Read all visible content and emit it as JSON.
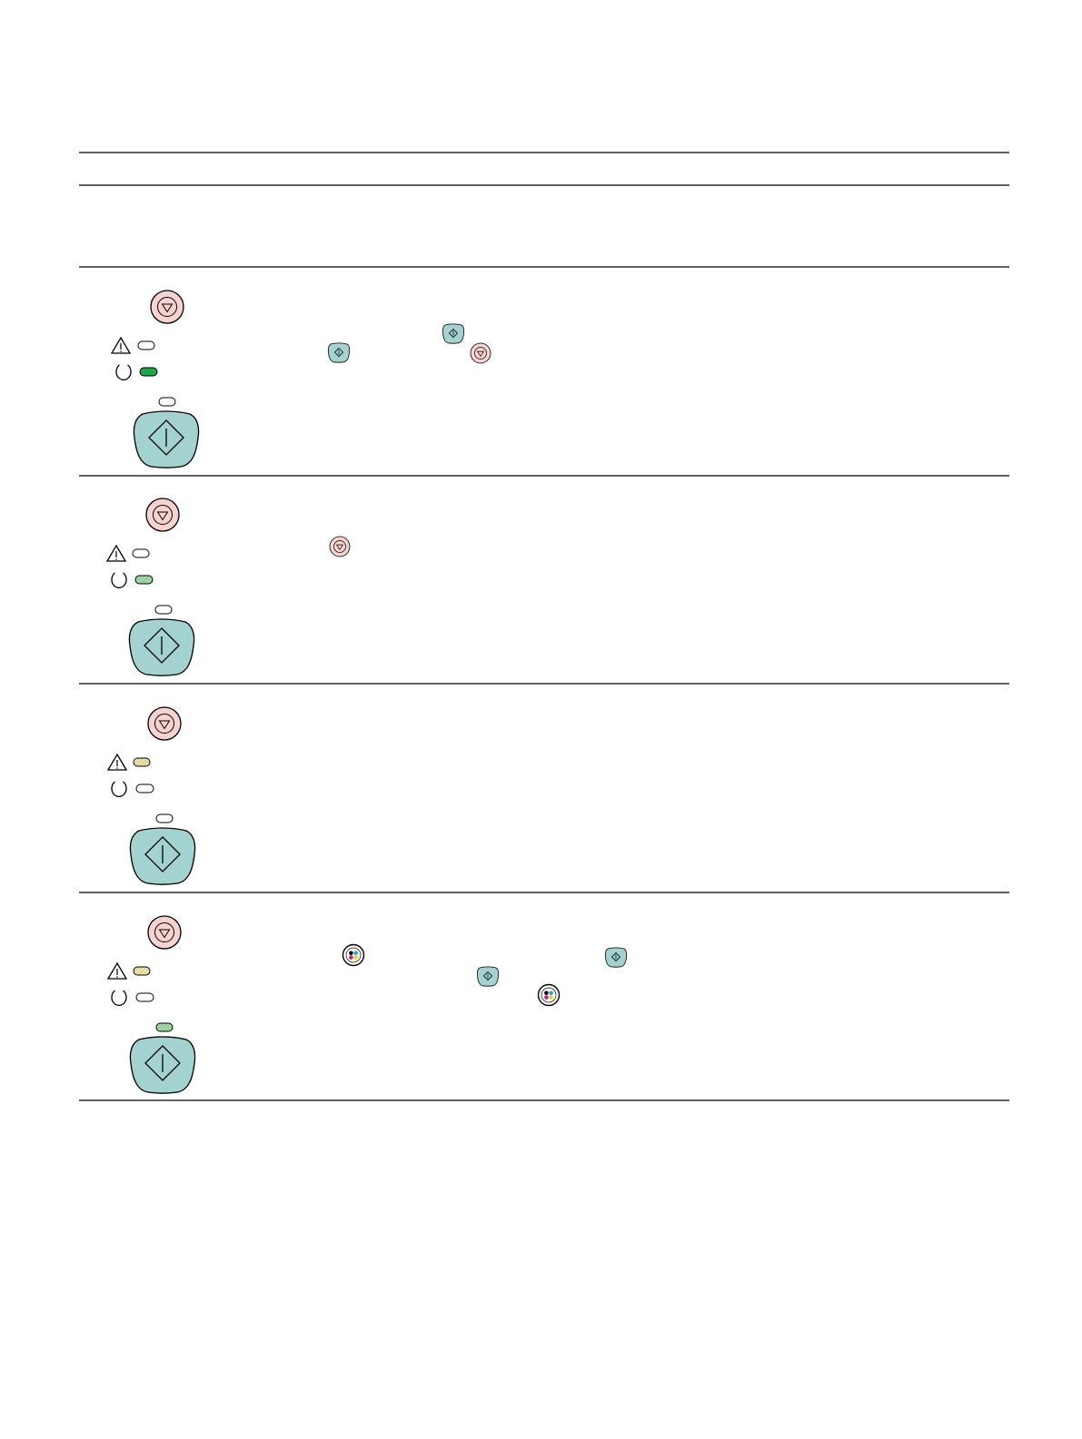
{
  "document": {
    "header_row": {},
    "rows": [
      {
        "panel": {
          "cancel_button": "pink",
          "attention_light": "off",
          "power_light": "on-solid",
          "resume_light": "off",
          "resume_button": "teal"
        },
        "inline_icons": [
          "resume-button-icon",
          "resume-button-icon",
          "cancel-button-icon"
        ]
      },
      {
        "panel": {
          "cancel_button": "pink",
          "attention_light": "off",
          "power_light": "blinking",
          "resume_light": "off",
          "resume_button": "teal"
        },
        "inline_icons": [
          "cancel-button-icon"
        ]
      },
      {
        "panel": {
          "cancel_button": "pink",
          "attention_light": "blinking",
          "power_light": "off",
          "resume_light": "off",
          "resume_button": "teal"
        },
        "inline_icons": []
      },
      {
        "panel": {
          "cancel_button": "pink",
          "attention_light": "blinking",
          "power_light": "off",
          "resume_light": "blinking",
          "resume_button": "teal"
        },
        "inline_icons": [
          "print-cartridge-button-icon",
          "resume-button-icon",
          "resume-button-icon",
          "print-cartridge-button-icon"
        ]
      }
    ]
  },
  "colors": {
    "cancel_fill": "#f6d3cf",
    "resume_fill": "#a3d3d0",
    "power_on": "#19a94a",
    "power_blink": "#a6dcaa",
    "attention_blink": "#efe3a6",
    "resume_blink": "#a6dcaa",
    "line": "#000000"
  }
}
